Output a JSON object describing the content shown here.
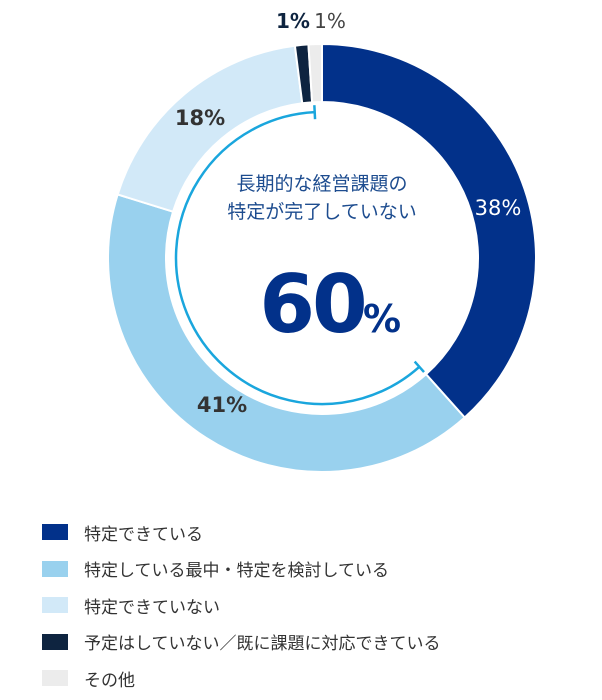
{
  "chart_data": {
    "type": "pie",
    "variant": "donut",
    "start": "top",
    "direction": "clockwise",
    "slices": [
      {
        "name": "特定できている",
        "value": 38,
        "label": "38%",
        "color": "#02318a"
      },
      {
        "name": "特定している最中・特定を検討している",
        "value": 41,
        "label": "41%",
        "color": "#99d1ee"
      },
      {
        "name": "特定できていない",
        "value": 18,
        "label": "18%",
        "color": "#d2e9f8"
      },
      {
        "name": "予定はしていない／既に課題に対応できている",
        "value": 1,
        "label": "1%",
        "color": "#0e2440"
      },
      {
        "name": "その他",
        "value": 1,
        "label": "1%",
        "color": "#ececec"
      }
    ],
    "center_annotation": {
      "line1": "長期的な経営課題の",
      "line2": "特定が完了していない",
      "value": "60",
      "unit": "%",
      "color": "#02318a",
      "bracket_color": "#1aa6dd"
    },
    "legend_placement": "bottom-left"
  }
}
